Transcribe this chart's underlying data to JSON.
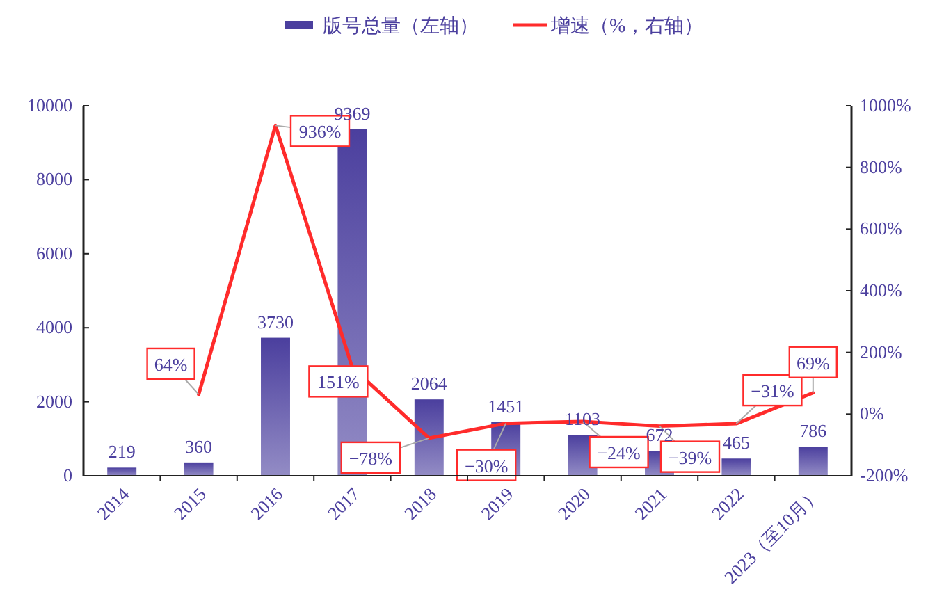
{
  "chart_data": {
    "type": "bar",
    "categories": [
      "2014",
      "2015",
      "2016",
      "2017",
      "2018",
      "2019",
      "2020",
      "2021",
      "2022",
      "2023（至10月）"
    ],
    "series": [
      {
        "name": "版号总量（左轴）",
        "color": "#4b3f9e",
        "values": [
          219,
          360,
          3730,
          9369,
          2064,
          1451,
          1103,
          672,
          465,
          786
        ]
      },
      {
        "name": "增速（%，右轴）",
        "type": "line",
        "axis": "y2",
        "color": "#ff2b2b",
        "values": [
          null,
          64,
          936,
          151,
          -78,
          -30,
          -24,
          -39,
          -31,
          69
        ],
        "value_labels": [
          null,
          "64%",
          "936%",
          "151%",
          "−78%",
          "−30%",
          "−24%",
          "−39%",
          "−31%",
          "69%"
        ]
      }
    ],
    "data_labels": true,
    "ylim": [
      0,
      10000
    ],
    "yticks": [
      0,
      2000,
      4000,
      6000,
      8000,
      10000
    ],
    "y2lim": [
      -200,
      1000
    ],
    "y2ticks": [
      {
        "value": -200,
        "label": "-200%"
      },
      {
        "value": 0,
        "label": "0%"
      },
      {
        "value": 200,
        "label": "200%"
      },
      {
        "value": 400,
        "label": "400%"
      },
      {
        "value": 600,
        "label": "600%"
      },
      {
        "value": 800,
        "label": "800%"
      },
      {
        "value": 1000,
        "label": "1000%"
      }
    ],
    "legend": "top",
    "grid": false,
    "marker": "none",
    "line_style": "solid"
  }
}
